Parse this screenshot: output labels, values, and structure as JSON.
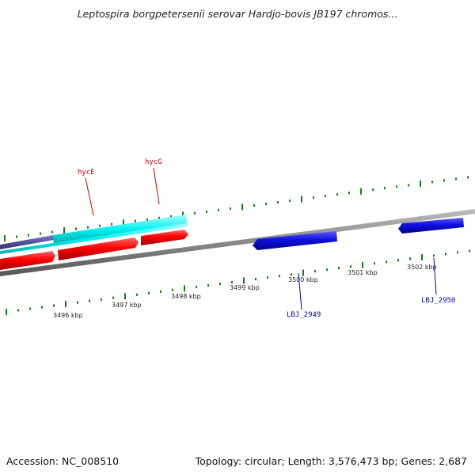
{
  "title": "Leptospira borgpetersenii serovar Hardjo-bovis JB197 chromos...",
  "footer": {
    "accession": "Accession: NC_008510",
    "summary": "Topology: circular; Length: 3,576,473 bp; Genes: 2,687"
  },
  "tick_labels": [
    "3496 kbp",
    "3497 kbp",
    "3498 kbp",
    "3499 kbp",
    "3500 kbp",
    "3501 kbp",
    "3502 kbp"
  ],
  "gene_labels": {
    "hycE": "hycE",
    "hycG": "hycG",
    "lbj2949": "LBJ_2949",
    "lbj2950": "LBJ_2950"
  },
  "colors": {
    "forward_label": "#cc0000",
    "reverse_label": "#0000aa",
    "tick": "#1a7a1a",
    "backbone": "#888888",
    "red_gene": "#ff0000",
    "blue_gene": "#1010e0",
    "cyan_gene": "#00f0f0",
    "purple_gene": "#4a4a9a"
  }
}
